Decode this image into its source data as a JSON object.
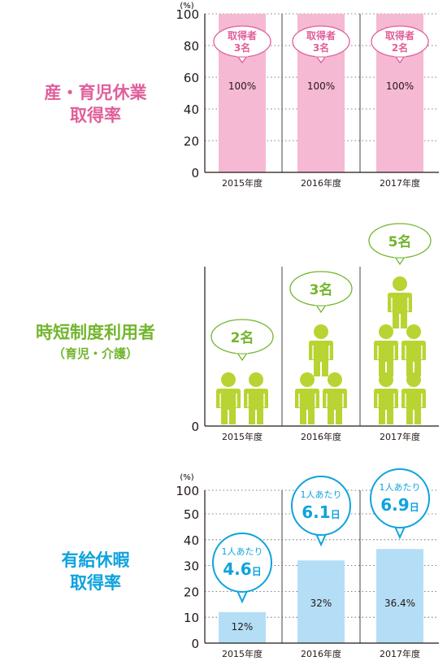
{
  "sections": [
    {
      "id": "leave",
      "label_lines": [
        "産・育児休業",
        "取得率"
      ],
      "color": "#e05f9b"
    },
    {
      "id": "shorttime",
      "label_lines": [
        "時短制度利用者"
      ],
      "sub_label": "（育児・介護）",
      "color": "#74b52e"
    },
    {
      "id": "paid",
      "label_lines": [
        "有給休暇",
        "取得率"
      ],
      "color": "#0fa3dd"
    }
  ],
  "chart_data": [
    {
      "type": "bar",
      "id": "leave",
      "unit_label": "(%)",
      "ylim": [
        0,
        100
      ],
      "yticks": [
        0,
        20,
        40,
        60,
        80,
        100
      ],
      "categories": [
        "2015年度",
        "2016年度",
        "2017年度"
      ],
      "values": [
        100,
        100,
        100
      ],
      "value_labels": [
        "100%",
        "100%",
        "100%"
      ],
      "bubbles": [
        {
          "line1": "取得者",
          "line2": "3名"
        },
        {
          "line1": "取得者",
          "line2": "3名"
        },
        {
          "line1": "取得者",
          "line2": "2名"
        }
      ],
      "bar_color": "#f5b9d4",
      "bubble_color": "#e05f9b",
      "grid": true
    },
    {
      "type": "pictogram",
      "id": "shorttime",
      "y_origin_label": "0",
      "categories": [
        "2015年度",
        "2016年度",
        "2017年度"
      ],
      "values": [
        2,
        3,
        5
      ],
      "bubbles": [
        "2名",
        "3名",
        "5名"
      ],
      "icon": "person-icon",
      "icon_color": "#b8d433",
      "bubble_color": "#74b52e"
    },
    {
      "type": "bar",
      "id": "paid",
      "unit_label": "(%)",
      "ylim": [
        0,
        100
      ],
      "yticks": [
        0,
        10,
        20,
        30,
        40,
        50,
        100
      ],
      "y_break": [
        50,
        100
      ],
      "categories": [
        "2015年度",
        "2016年度",
        "2017年度"
      ],
      "values": [
        12,
        32,
        36.4
      ],
      "value_labels": [
        "12%",
        "32%",
        "36.4%"
      ],
      "bubbles": [
        {
          "line1": "1人あたり",
          "number": "4.6",
          "unit": "日"
        },
        {
          "line1": "1人あたり",
          "number": "6.1",
          "unit": "日"
        },
        {
          "line1": "1人あたり",
          "number": "6.9",
          "unit": "日"
        }
      ],
      "bar_color": "#b4def6",
      "bubble_color": "#0fa3dd",
      "grid": true
    }
  ]
}
